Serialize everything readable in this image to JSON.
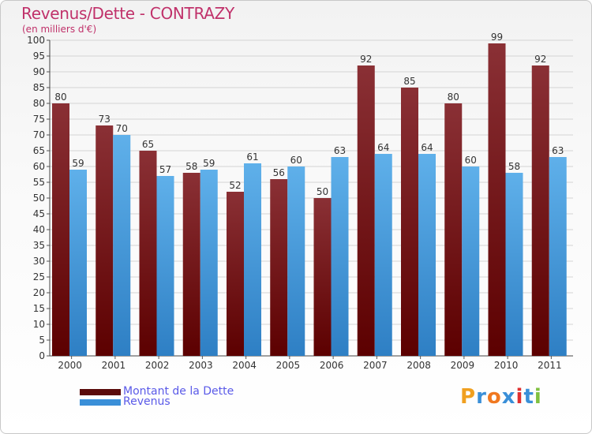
{
  "title": "Revenus/Dette - CONTRAZY",
  "subtitle": "(en milliers d'€)",
  "logo_text": "Proxiti",
  "colors": {
    "dette": "#7a1e24",
    "revenus": "#4ea3e0",
    "title": "#c0316a",
    "legend_text": "#5a5ae8",
    "grid": "#d0d0d0"
  },
  "legend": [
    {
      "label": "Montant de la Dette",
      "color": "#5a0a0a"
    },
    {
      "label": "Revenus",
      "color": "#3a8fd8"
    }
  ],
  "chart_data": {
    "type": "bar",
    "categories": [
      "2000",
      "2001",
      "2002",
      "2003",
      "2004",
      "2005",
      "2006",
      "2007",
      "2008",
      "2009",
      "2010",
      "2011"
    ],
    "series": [
      {
        "name": "Montant de la Dette",
        "values": [
          80,
          73,
          65,
          58,
          52,
          56,
          50,
          92,
          85,
          80,
          99,
          92
        ]
      },
      {
        "name": "Revenus",
        "values": [
          59,
          70,
          57,
          59,
          61,
          60,
          63,
          64,
          64,
          60,
          58,
          63
        ]
      }
    ],
    "yticks": [
      0,
      5,
      10,
      15,
      20,
      25,
      30,
      35,
      40,
      45,
      50,
      55,
      60,
      65,
      70,
      75,
      80,
      85,
      90,
      95,
      100
    ],
    "ylim": [
      0,
      100
    ],
    "grid": true,
    "legend_position": "bottom-left"
  }
}
